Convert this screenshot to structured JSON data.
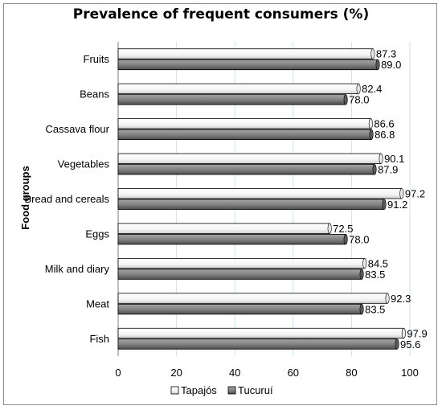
{
  "chart_data": {
    "type": "bar",
    "orientation": "horizontal",
    "title": "Prevalence of frequent consumers (%)",
    "ylabel": "Food groups",
    "xlabel": "",
    "categories": [
      "Fruits",
      "Beans",
      "Cassava flour",
      "Vegetables",
      "Bread and cereals",
      "Eggs",
      "Milk and diary",
      "Meat",
      "Fish"
    ],
    "series": [
      {
        "name": "Tapajós",
        "values": [
          87.3,
          82.4,
          86.6,
          90.1,
          97.2,
          72.5,
          84.5,
          92.3,
          97.9
        ],
        "color": "#ffffff"
      },
      {
        "name": "Tucuruí",
        "values": [
          89.0,
          78.0,
          86.8,
          87.9,
          91.2,
          78.0,
          83.5,
          83.5,
          95.6
        ],
        "color": "#7f7f7f"
      }
    ],
    "xlim": [
      0,
      100
    ],
    "xticks": [
      "0",
      "20",
      "40",
      "60",
      "80",
      "100"
    ],
    "grid": true,
    "legend": "bottom"
  }
}
